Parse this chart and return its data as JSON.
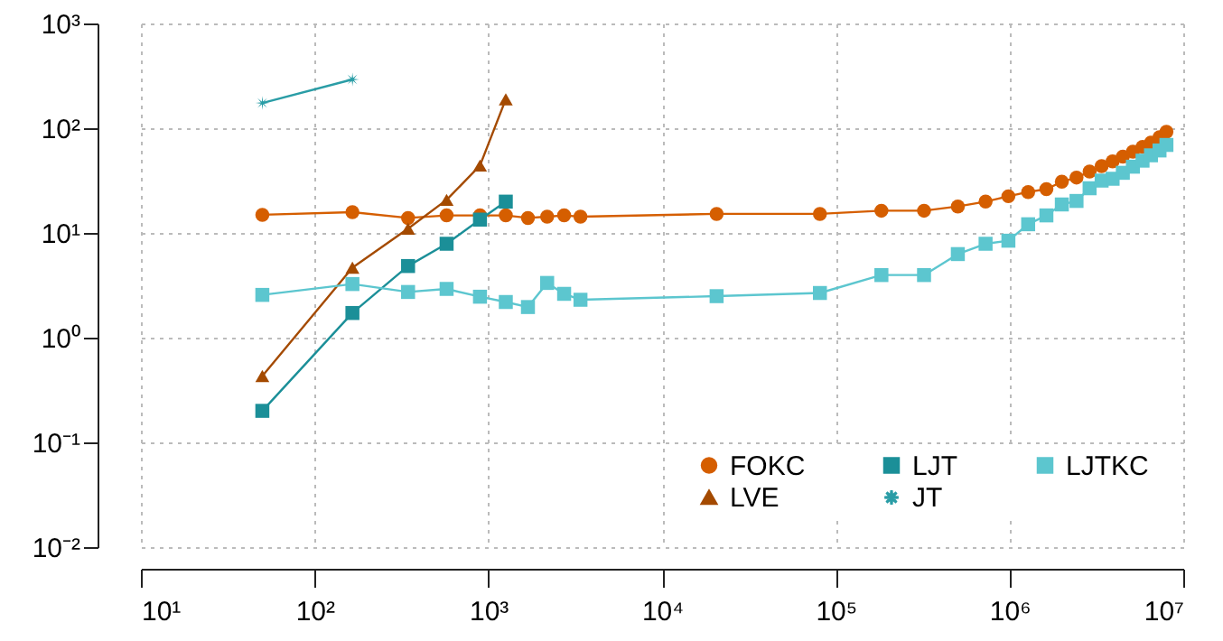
{
  "chart_data": {
    "type": "line",
    "log": "xy",
    "grid": true,
    "legend": "bottom right",
    "xlim": [
      10,
      10000000
    ],
    "ylim": [
      0.01,
      1000
    ],
    "xticks": [
      {
        "value": 10,
        "label": "10¹"
      },
      {
        "value": 100,
        "label": "10²"
      },
      {
        "value": 1000,
        "label": "10³"
      },
      {
        "value": 10000,
        "label": "10⁴"
      },
      {
        "value": 100000,
        "label": "10⁵"
      },
      {
        "value": 1000000,
        "label": "10⁶"
      },
      {
        "value": 10000000,
        "label": "10⁷"
      }
    ],
    "yticks": [
      {
        "value": 0.01,
        "label": "10⁻²"
      },
      {
        "value": 0.1,
        "label": "10⁻¹"
      },
      {
        "value": 1,
        "label": "10⁰"
      },
      {
        "value": 10,
        "label": "10¹"
      },
      {
        "value": 100,
        "label": "10²"
      },
      {
        "value": 1000,
        "label": "10³"
      }
    ],
    "series": [
      {
        "name": "FOKC",
        "color": "#d55e00",
        "marker": "circle",
        "x": [
          50,
          165,
          345,
          575,
          895,
          1260,
          1690,
          2180,
          2730,
          3390,
          20600,
          81000,
          183000,
          322000,
          504000,
          728000,
          985000,
          1280000,
          1630000,
          2000000,
          2430000,
          2890000,
          3390000,
          3920000,
          4490000,
          5130000,
          5830000,
          6520000,
          7300000,
          8000000
        ],
        "values": [
          14.9,
          15.8,
          13.9,
          14.7,
          14.7,
          14.7,
          13.9,
          14.3,
          14.7,
          14.3,
          15.2,
          15.2,
          16.3,
          16.3,
          17.9,
          19.9,
          22.4,
          24.6,
          26.2,
          30.8,
          33.8,
          38.5,
          43.4,
          48.3,
          53.6,
          59.7,
          66.4,
          72.8,
          82,
          92.5
        ]
      },
      {
        "name": "LVE",
        "color": "#a44a00",
        "marker": "triangle",
        "x": [
          50,
          165,
          345,
          575,
          895,
          1260
        ],
        "values": [
          0.43,
          4.65,
          11,
          20.7,
          44,
          189
        ]
      },
      {
        "name": "LJT",
        "color": "#1b8f98",
        "marker": "square",
        "x": [
          50,
          165,
          345,
          575,
          895,
          1260
        ],
        "values": [
          0.2,
          1.72,
          4.83,
          7.88,
          13.4,
          19.9
        ]
      },
      {
        "name": "JT",
        "color": "#2a9da6",
        "marker": "star",
        "x": [
          50,
          165
        ],
        "values": [
          174,
          292
        ]
      },
      {
        "name": "LJTKC",
        "color": "#5cc6cf",
        "marker": "square",
        "x": [
          50,
          165,
          345,
          575,
          895,
          1260,
          1690,
          2180,
          2730,
          3390,
          20600,
          81000,
          183000,
          322000,
          504000,
          728000,
          985000,
          1280000,
          1630000,
          2000000,
          2430000,
          2890000,
          3390000,
          3920000,
          4490000,
          5130000,
          5830000,
          6520000,
          7300000,
          8000000
        ],
        "values": [
          2.56,
          3.25,
          2.73,
          2.92,
          2.46,
          2.19,
          1.96,
          3.33,
          2.62,
          2.3,
          2.49,
          2.67,
          3.96,
          3.96,
          6.28,
          7.88,
          8.43,
          12.1,
          14.7,
          18.7,
          20.2,
          26.7,
          31.6,
          32.9,
          37.5,
          42.9,
          49,
          55.1,
          61.3,
          69.2
        ]
      }
    ]
  }
}
